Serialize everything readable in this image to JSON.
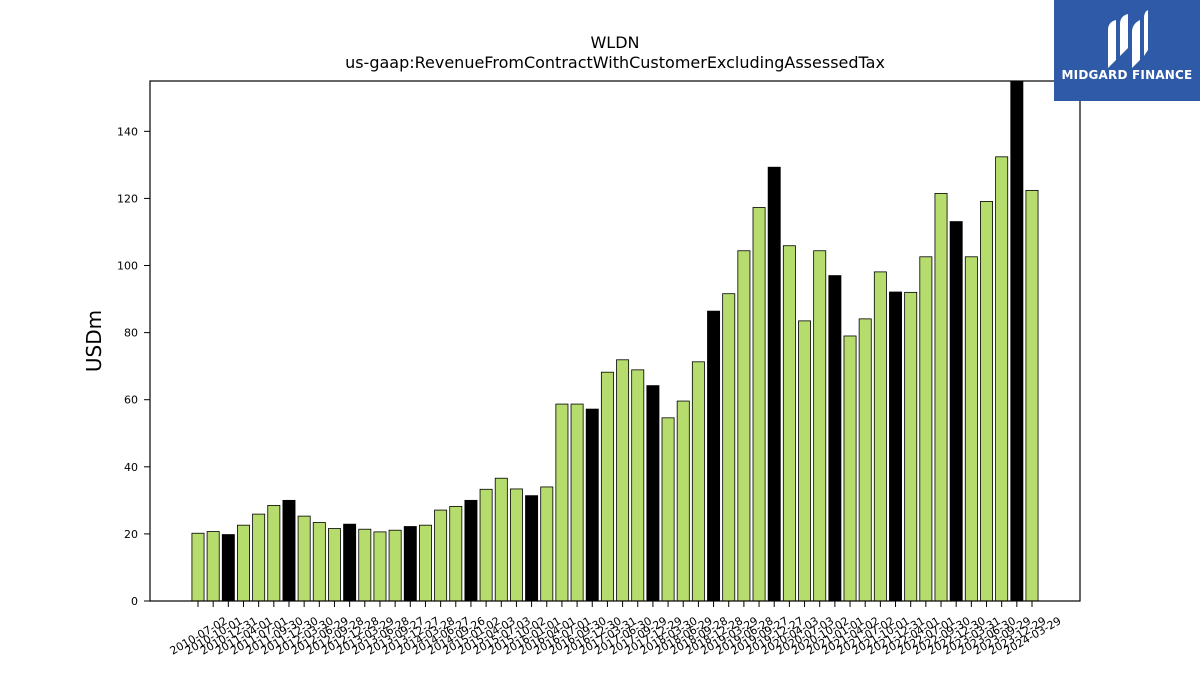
{
  "brand": {
    "name": "MIDGARD FINANCE",
    "bg_color": "#2f5aa8"
  },
  "chart_data": {
    "type": "bar",
    "title": "WLDN",
    "subtitle": "us-gaap:RevenueFromContractWithCustomerExcludingAssessedTax",
    "ylabel": "USDm",
    "xlabel": "",
    "ylim": [
      0,
      155
    ],
    "yticks": [
      0,
      20,
      40,
      60,
      80,
      100,
      120,
      140
    ],
    "grid": false,
    "colors": {
      "normal": "#b5dc6d",
      "highlight": "#000000"
    },
    "categories": [
      "2010-07-02",
      "2010-10-01",
      "2010-12-31",
      "2011-04-01",
      "2011-07-01",
      "2011-09-30",
      "2011-12-30",
      "2012-03-30",
      "2012-06-29",
      "2012-09-28",
      "2012-12-28",
      "2013-03-29",
      "2013-06-28",
      "2013-09-27",
      "2013-12-27",
      "2014-03-28",
      "2014-06-27",
      "2014-09-26",
      "2015-01-02",
      "2015-04-03",
      "2015-07-03",
      "2015-10-02",
      "2016-01-01",
      "2016-04-01",
      "2016-07-01",
      "2016-09-30",
      "2016-12-30",
      "2017-03-31",
      "2017-06-30",
      "2017-09-29",
      "2017-12-29",
      "2018-03-30",
      "2018-06-29",
      "2018-09-28",
      "2018-12-28",
      "2019-03-29",
      "2019-06-28",
      "2019-09-27",
      "2019-12-27",
      "2020-04-03",
      "2020-07-03",
      "2020-10-02",
      "2021-01-01",
      "2021-04-02",
      "2021-07-02",
      "2021-10-01",
      "2021-12-31",
      "2022-04-01",
      "2022-07-01",
      "2022-09-30",
      "2022-12-30",
      "2023-03-31",
      "2023-06-30",
      "2023-09-29",
      "2023-12-29",
      "2024-03-29"
    ],
    "values": [
      20.2,
      20.7,
      19.8,
      22.6,
      25.9,
      28.5,
      30.0,
      25.3,
      23.4,
      21.6,
      22.9,
      21.4,
      20.6,
      21.1,
      22.2,
      22.6,
      27.1,
      28.2,
      30.0,
      33.3,
      36.6,
      33.4,
      31.4,
      34.0,
      58.7,
      58.7,
      57.2,
      68.2,
      71.9,
      68.9,
      64.2,
      54.6,
      59.6,
      71.3,
      86.4,
      91.6,
      104.4,
      117.3,
      129.3,
      105.9,
      83.5,
      104.4,
      97.0,
      79.0,
      84.1,
      98.1,
      92.1,
      92.0,
      102.6,
      121.5,
      113.1,
      102.6,
      119.1,
      132.4,
      155.0,
      122.4
    ],
    "highlighted": [
      false,
      false,
      true,
      false,
      false,
      false,
      true,
      false,
      false,
      false,
      true,
      false,
      false,
      false,
      true,
      false,
      false,
      false,
      true,
      false,
      false,
      false,
      true,
      false,
      false,
      false,
      true,
      false,
      false,
      false,
      true,
      false,
      false,
      false,
      true,
      false,
      false,
      false,
      true,
      false,
      false,
      false,
      true,
      false,
      false,
      false,
      true,
      false,
      false,
      false,
      true,
      false,
      false,
      false,
      true,
      false
    ]
  }
}
